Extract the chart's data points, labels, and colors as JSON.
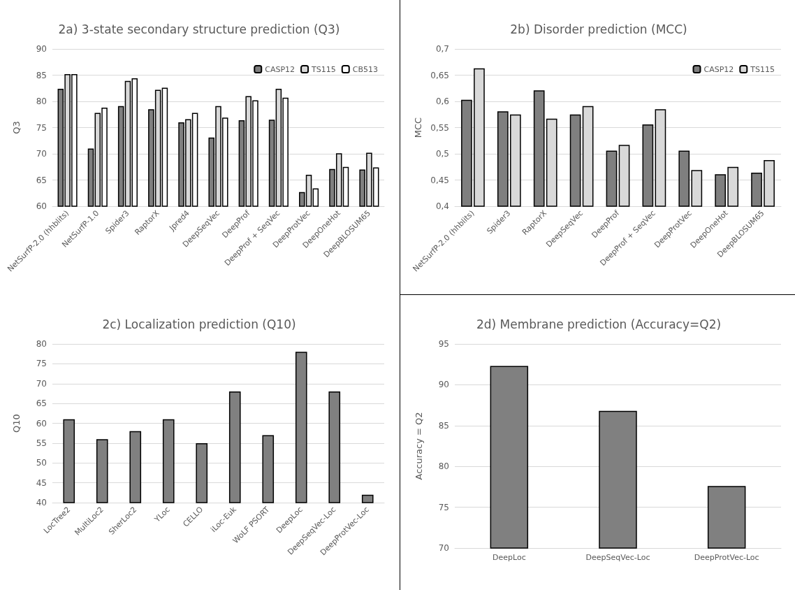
{
  "chart_data": [
    {
      "type": "bar",
      "title": "2a) 3-state secondary structure prediction (Q3)",
      "ylabel": "Q3",
      "categories": [
        "NetSurfP-2.0 (hhblits)",
        "NetSurfP-1.0",
        "Spider3",
        "RaptorX",
        "Jpred4",
        "DeepSeqVec",
        "DeepProf",
        "DeepProf + SeqVec",
        "DeepProtVec",
        "DeepOneHot",
        "DeepBLOSUM65"
      ],
      "series": [
        {
          "name": "CASP12",
          "color": "#7f7f7f",
          "values": [
            82.4,
            71.0,
            79.1,
            78.5,
            76.0,
            73.1,
            76.4,
            76.5,
            62.7,
            67.1,
            67.0
          ]
        },
        {
          "name": "TS115",
          "color": "#d9d9d9",
          "values": [
            85.2,
            77.8,
            83.9,
            82.2,
            76.6,
            79.1,
            81.0,
            82.4,
            66.0,
            70.1,
            70.2
          ]
        },
        {
          "name": "CB513",
          "color": "#ffffff",
          "values": [
            85.2,
            78.8,
            84.4,
            82.6,
            77.8,
            76.9,
            80.2,
            80.7,
            63.4,
            67.5,
            67.4
          ]
        }
      ],
      "ylim": [
        60,
        90
      ],
      "yticks": [
        60,
        65,
        70,
        75,
        80,
        85,
        90
      ],
      "grid": "y",
      "legend": "top right"
    },
    {
      "type": "bar",
      "title": "2b) Disorder prediction (MCC)",
      "ylabel": "MCC",
      "categories": [
        "NetSurfP-2.0 (hhblits)",
        "Spider3",
        "RaptorX",
        "DeepSeqVec",
        "DeepProf",
        "DeepProf + SeqVec",
        "DeepProtVec",
        "DeepOneHot",
        "DeepBLOSUM65"
      ],
      "series": [
        {
          "name": "CASP12",
          "color": "#7f7f7f",
          "values": [
            0.603,
            0.581,
            0.621,
            0.575,
            0.506,
            0.556,
            0.506,
            0.461,
            0.464
          ]
        },
        {
          "name": "TS115",
          "color": "#d9d9d9",
          "values": [
            0.663,
            0.575,
            0.567,
            0.591,
            0.517,
            0.585,
            0.469,
            0.475,
            0.488
          ]
        }
      ],
      "ylim": [
        0.4,
        0.7
      ],
      "yticks": [
        {
          "value": 0.4,
          "label": "0,4"
        },
        {
          "value": 0.45,
          "label": "0,45"
        },
        {
          "value": 0.5,
          "label": "0,5"
        },
        {
          "value": 0.55,
          "label": "0,55"
        },
        {
          "value": 0.6,
          "label": "0,6"
        },
        {
          "value": 0.65,
          "label": "0,65"
        },
        {
          "value": 0.7,
          "label": "0,7"
        }
      ],
      "grid": "y",
      "legend": "top right"
    },
    {
      "type": "bar",
      "title": "2c) Localization prediction (Q10)",
      "ylabel": "Q10",
      "categories": [
        "LocTree2",
        "MultiLoc2",
        "SherLoc2",
        "YLoc",
        "CELLO",
        "iLoc-Euk",
        "WoLF PSORT",
        "DeepLoc",
        "DeepSeqVec-Loc",
        "DeepProtVec-Loc"
      ],
      "values": [
        61,
        56,
        58,
        61,
        55,
        68,
        57,
        78,
        68,
        42
      ],
      "color": "#808080",
      "ylim": [
        40,
        80
      ],
      "yticks": [
        40,
        45,
        50,
        55,
        60,
        65,
        70,
        75,
        80
      ],
      "grid": "y"
    },
    {
      "type": "bar",
      "title": "2d) Membrane prediction (Accuracy=Q2)",
      "ylabel": "Accuracy = Q2",
      "categories": [
        "DeepLoc",
        "DeepSeqVec-Loc",
        "DeepProtVec-Loc"
      ],
      "values": [
        92.3,
        86.8,
        77.6
      ],
      "color": "#808080",
      "ylim": [
        70,
        95
      ],
      "yticks": [
        70,
        75,
        80,
        85,
        90,
        95
      ],
      "grid": "y"
    }
  ]
}
